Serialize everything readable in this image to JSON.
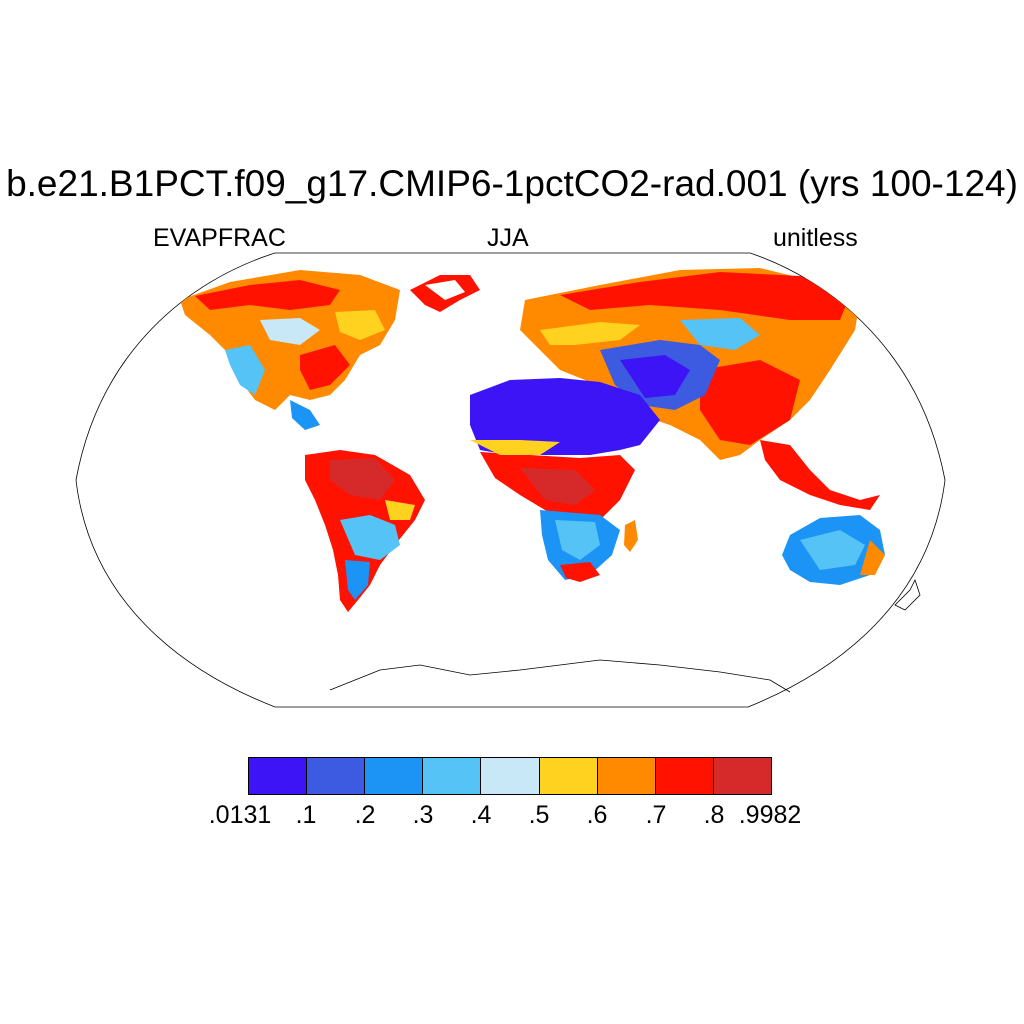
{
  "map": {
    "title": "b.e21.B1PCT.f09_g17.CMIP6-1pctCO2-rad.001 (yrs 100-124)",
    "left_label": "EVAPFRAC",
    "center_label": "JJA",
    "right_label": "unitless",
    "projection": "Robinson",
    "colorbar": {
      "colors": [
        "#3d14f5",
        "#3d5be0",
        "#1c94f5",
        "#55c3f5",
        "#c8e8f8",
        "#ffd21f",
        "#ff8a00",
        "#ff1200",
        "#d62a2a"
      ],
      "labels": [
        ".0131",
        ".1",
        ".2",
        ".3",
        ".4",
        ".5",
        ".6",
        ".7",
        ".8",
        ".9982"
      ]
    }
  }
}
